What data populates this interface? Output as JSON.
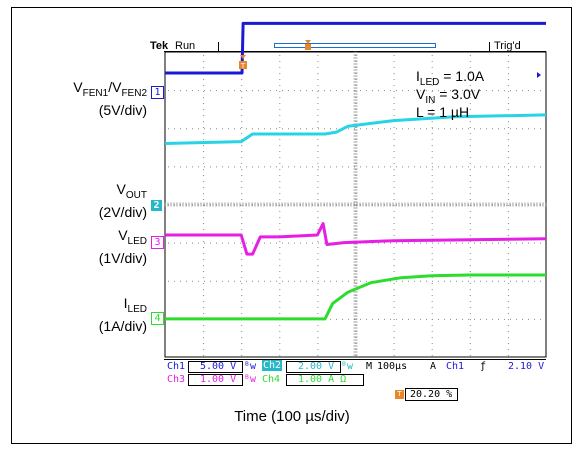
{
  "header": {
    "brand": "Tek",
    "run_state": "Run",
    "trigger_status": "Trig'd"
  },
  "annotations": {
    "i_led": "I",
    "i_led_sub": "LED",
    "i_led_val": " = 1.0A",
    "v_in": "V",
    "v_in_sub": "IN",
    "v_in_val": " = 3.0V",
    "l_val": "L = 1 µH"
  },
  "channel_labels": {
    "fen_a": "V",
    "fen_a_sub": "FEN1",
    "fen_sep": "/V",
    "fen_b_sub": "FEN2",
    "fen_scale": "(5V/div)",
    "vout": "V",
    "vout_sub": "OUT",
    "vout_scale": "(2V/div)",
    "vled": "V",
    "vled_sub": "LED",
    "vled_scale": "(1V/div)",
    "iled": "I",
    "iled_sub": "LED",
    "iled_scale": "(1A/div)"
  },
  "channel_markers": [
    "1",
    "2",
    "3",
    "4"
  ],
  "readout": {
    "ch1_name": "Ch1",
    "ch1_scale": "5.00 V",
    "ch2_name": "Ch2",
    "ch2_scale": "2.00 V",
    "timebase_label": "M",
    "timebase": "100µs",
    "trig_mode": "A",
    "trig_src": "Ch1",
    "trig_slope": "ƒ",
    "trig_level": "2.10 V",
    "ch3_name": "Ch3",
    "ch3_scale": "1.00 V",
    "ch4_name": "Ch4",
    "ch4_scale": "1.00 A Ω",
    "trig_pos": "20.20 %"
  },
  "xlabel": "Time (100 µs/div)",
  "colors": {
    "ch1": "#1a1ad6",
    "ch2": "#27d3e6",
    "ch3": "#e61ee6",
    "ch4": "#2edc2e",
    "trigger": "#e8862a",
    "grid": "#8a8a8a"
  },
  "chart_data": {
    "type": "line",
    "xlabel": "Time (100 µs/div)",
    "x_unit": "µs",
    "xlim": [
      0,
      1000
    ],
    "ylim_divisions": [
      -4,
      4
    ],
    "series": [
      {
        "name": "VFEN1/VFEN2",
        "scale": "5V/div",
        "x": [
          0,
          202,
          205,
          1000
        ],
        "y": [
          3.45,
          3.45,
          4.75,
          4.75
        ]
      },
      {
        "name": "VOUT",
        "scale": "2V/div",
        "x": [
          0,
          200,
          230,
          420,
          450,
          480,
          600,
          760,
          1000
        ],
        "y": [
          1.6,
          1.65,
          1.85,
          1.85,
          1.9,
          2.05,
          2.2,
          2.3,
          2.35
        ]
      },
      {
        "name": "VLED",
        "scale": "1V/div",
        "x": [
          0,
          200,
          215,
          230,
          250,
          300,
          400,
          415,
          425,
          470,
          600,
          1000
        ],
        "y": [
          -0.8,
          -0.8,
          -1.3,
          -1.3,
          -0.85,
          -0.85,
          -0.8,
          -0.5,
          -1.05,
          -1.0,
          -0.95,
          -0.9
        ]
      },
      {
        "name": "ILED",
        "scale": "1A/div",
        "x": [
          0,
          420,
          440,
          480,
          540,
          620,
          700,
          800,
          1000
        ],
        "y": [
          -3.0,
          -3.0,
          -2.6,
          -2.3,
          -2.05,
          -1.92,
          -1.87,
          -1.85,
          -1.85
        ]
      }
    ]
  }
}
